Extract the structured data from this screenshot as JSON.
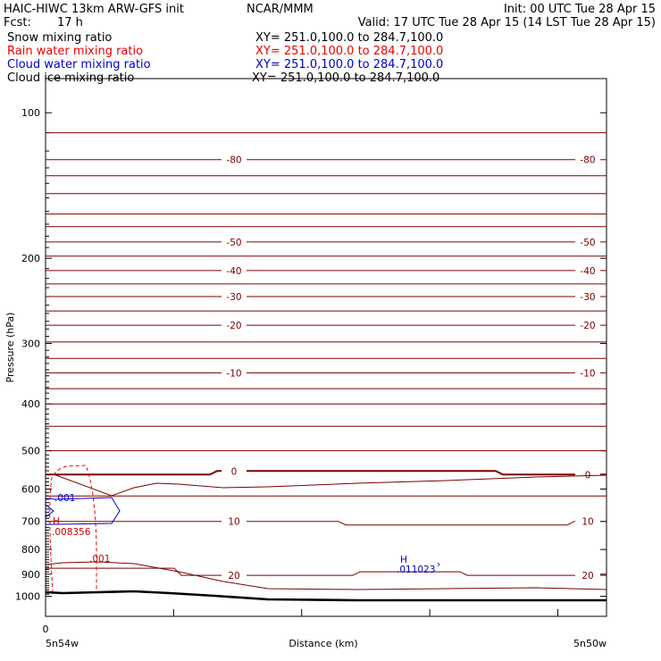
{
  "header": {
    "model": "HAIC-HIWC 13km ARW-GFS init",
    "org": "NCAR/MMM",
    "init": "Init: 00 UTC Tue 28 Apr 15",
    "fcst_label": "Fcst:",
    "fcst_value": "17 h",
    "valid": "Valid: 17 UTC Tue 28 Apr 15 (14 LST Tue 28 Apr 15)"
  },
  "fields": [
    {
      "name": "Snow mixing ratio",
      "xy": "XY= 251.0,100.0 to 284.7,100.0",
      "color": "#000000"
    },
    {
      "name": "Rain water mixing ratio",
      "xy": "XY= 251.0,100.0 to 284.7,100.0",
      "color": "#ee0000"
    },
    {
      "name": "Cloud water mixing ratio",
      "xy": "XY= 251.0,100.0 to 284.7,100.0",
      "color": "#0000cc"
    },
    {
      "name": "Cloud ice mixing ratio",
      "xy": "XY= 251.0,100.0 to 284.7,100.0",
      "color": "#000000"
    }
  ],
  "axes": {
    "ylabel": "Pressure (hPa)",
    "xlabel": "Distance (km)",
    "x_left_label": "5n54w",
    "x_right_label": "5n50w",
    "x_zero": "0",
    "y_ticks": [
      "100",
      "200",
      "300",
      "400",
      "500",
      "600",
      "700",
      "800",
      "900",
      "1000"
    ]
  },
  "chart_data": {
    "type": "line",
    "ylabel": "Pressure (hPa)",
    "xlabel": "Distance (km)",
    "y_scale": "log",
    "y_range_hPa": [
      1100,
      85
    ],
    "y_ticks": [
      100,
      200,
      300,
      400,
      500,
      600,
      700,
      800,
      900,
      1000
    ],
    "x_range_km": [
      0,
      440
    ],
    "temperature_contours": [
      {
        "label": "-80",
        "p": 125
      },
      {
        "label": "-50",
        "p": 185
      },
      {
        "label": "-40",
        "p": 212
      },
      {
        "label": "-30",
        "p": 240
      },
      {
        "label": "-20",
        "p": 275
      },
      {
        "label": "-10",
        "p": 345
      },
      {
        "label": "0",
        "p": 560
      },
      {
        "label": "10",
        "p": 700
      },
      {
        "label": "20",
        "p": 905
      }
    ],
    "maximum_labels": [
      {
        "text": "H",
        "value": ".008356",
        "color": "#cc0000"
      },
      {
        "text": "H",
        "value": ".011023",
        "color": "#0000cc"
      }
    ],
    "contour_value_labels": [
      {
        "text": ".001",
        "color": "#0000cc"
      },
      {
        "text": ".001",
        "color": "#cc0000"
      }
    ]
  },
  "colors": {
    "temperature": "#7a0000",
    "ground": "#000000",
    "rain": "#ee0000",
    "cloud_water": "#0000cc"
  }
}
